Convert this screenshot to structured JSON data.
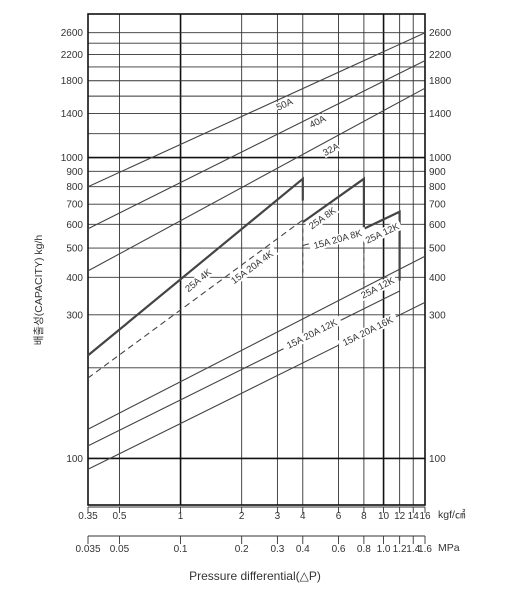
{
  "chart_data": {
    "type": "line",
    "xscale": "log",
    "yscale": "log",
    "xlim": [
      0.35,
      16
    ],
    "ylim": [
      70,
      3000
    ],
    "grid": true,
    "ylabel": "배출성(CAPACITY) kg/h",
    "xlabel": "Pressure differential(△P)",
    "x_unit_kgf": "kgf/㎠",
    "x_unit_mpa": "MPa",
    "x_ticks_kgf": [
      "0.35",
      "0.5",
      "1",
      "2",
      "3",
      "4",
      "6",
      "8",
      "10",
      "12",
      "14",
      "16"
    ],
    "x_ticks_mpa": [
      "0.035",
      "0.05",
      "0.1",
      "0.2",
      "0.3",
      "0.4",
      "0.6",
      "0.8",
      "1.0",
      "1.2",
      "1.4",
      "1.6"
    ],
    "y_ticks": [
      "100",
      "300",
      "400",
      "500",
      "600",
      "700",
      "800",
      "900",
      "1000",
      "1400",
      "1800",
      "2200",
      "2600"
    ],
    "series": [
      {
        "name": "50A",
        "x": [
          0.35,
          16
        ],
        "y": [
          800,
          2600
        ]
      },
      {
        "name": "40A",
        "x": [
          0.35,
          16
        ],
        "y": [
          580,
          2100
        ]
      },
      {
        "name": "32A",
        "x": [
          0.35,
          16
        ],
        "y": [
          420,
          1700
        ]
      },
      {
        "name": "25A 4K",
        "x": [
          0.35,
          4,
          4
        ],
        "y": [
          220,
          850,
          720
        ]
      },
      {
        "name": "15A 20A 4K",
        "x": [
          0.35,
          4
        ],
        "y": [
          185,
          620
        ]
      },
      {
        "name": "25A 8K",
        "x": [
          4,
          8,
          8
        ],
        "y": [
          610,
          850,
          560
        ]
      },
      {
        "name": "15A 20A 8K",
        "x": [
          4,
          8
        ],
        "y": [
          510,
          580
        ]
      },
      {
        "name": "25A 12K",
        "x": [
          8,
          12,
          12
        ],
        "y": [
          580,
          660,
          390
        ]
      },
      {
        "name": "15A 20A 12K",
        "x": [
          0.35,
          12
        ],
        "y": [
          110,
          360
        ]
      },
      {
        "name": "25A 12K",
        "x": [
          0.35,
          16
        ],
        "y": [
          125,
          470
        ]
      },
      {
        "name": "15A 20A 16K",
        "x": [
          0.35,
          16
        ],
        "y": [
          92,
          330
        ]
      }
    ]
  }
}
